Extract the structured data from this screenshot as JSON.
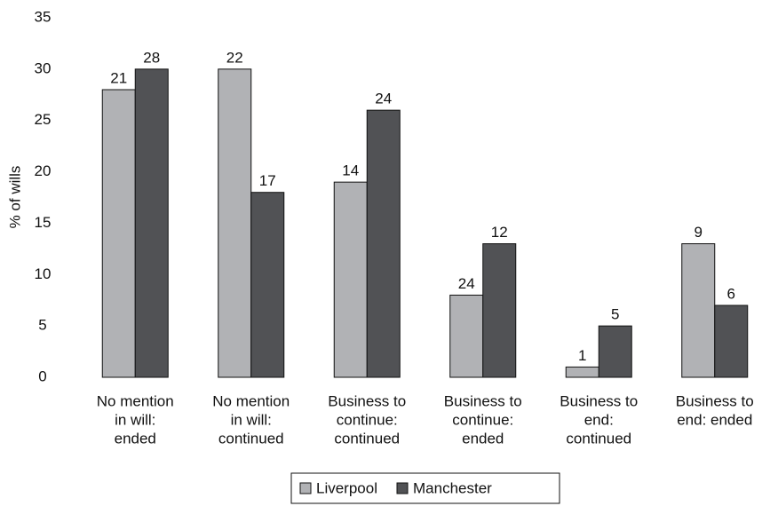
{
  "chart_data": {
    "type": "bar",
    "y_label": "% of wills",
    "categories": [
      [
        "No mention",
        "in will:",
        "ended"
      ],
      [
        "No mention",
        "in will:",
        "continued"
      ],
      [
        "Business to",
        "continue:",
        "continued"
      ],
      [
        "Business to",
        "continue:",
        "ended"
      ],
      [
        "Business to",
        "end:",
        "continued"
      ],
      [
        "Business to",
        "end: ended"
      ]
    ],
    "series": [
      {
        "name": "Liverpool",
        "color": "#b1b2b5",
        "values": [
          28,
          30,
          19,
          8,
          1,
          13
        ],
        "counts": [
          21,
          22,
          14,
          24,
          1,
          9
        ]
      },
      {
        "name": "Manchester",
        "color": "#515255",
        "values": [
          30,
          18,
          26,
          13,
          5,
          7
        ],
        "counts": [
          28,
          17,
          24,
          12,
          5,
          6
        ]
      }
    ],
    "ylim": [
      0,
      35
    ],
    "yticks": [
      0,
      5,
      10,
      15,
      20,
      25,
      30,
      35
    ],
    "legend": "bottom"
  }
}
